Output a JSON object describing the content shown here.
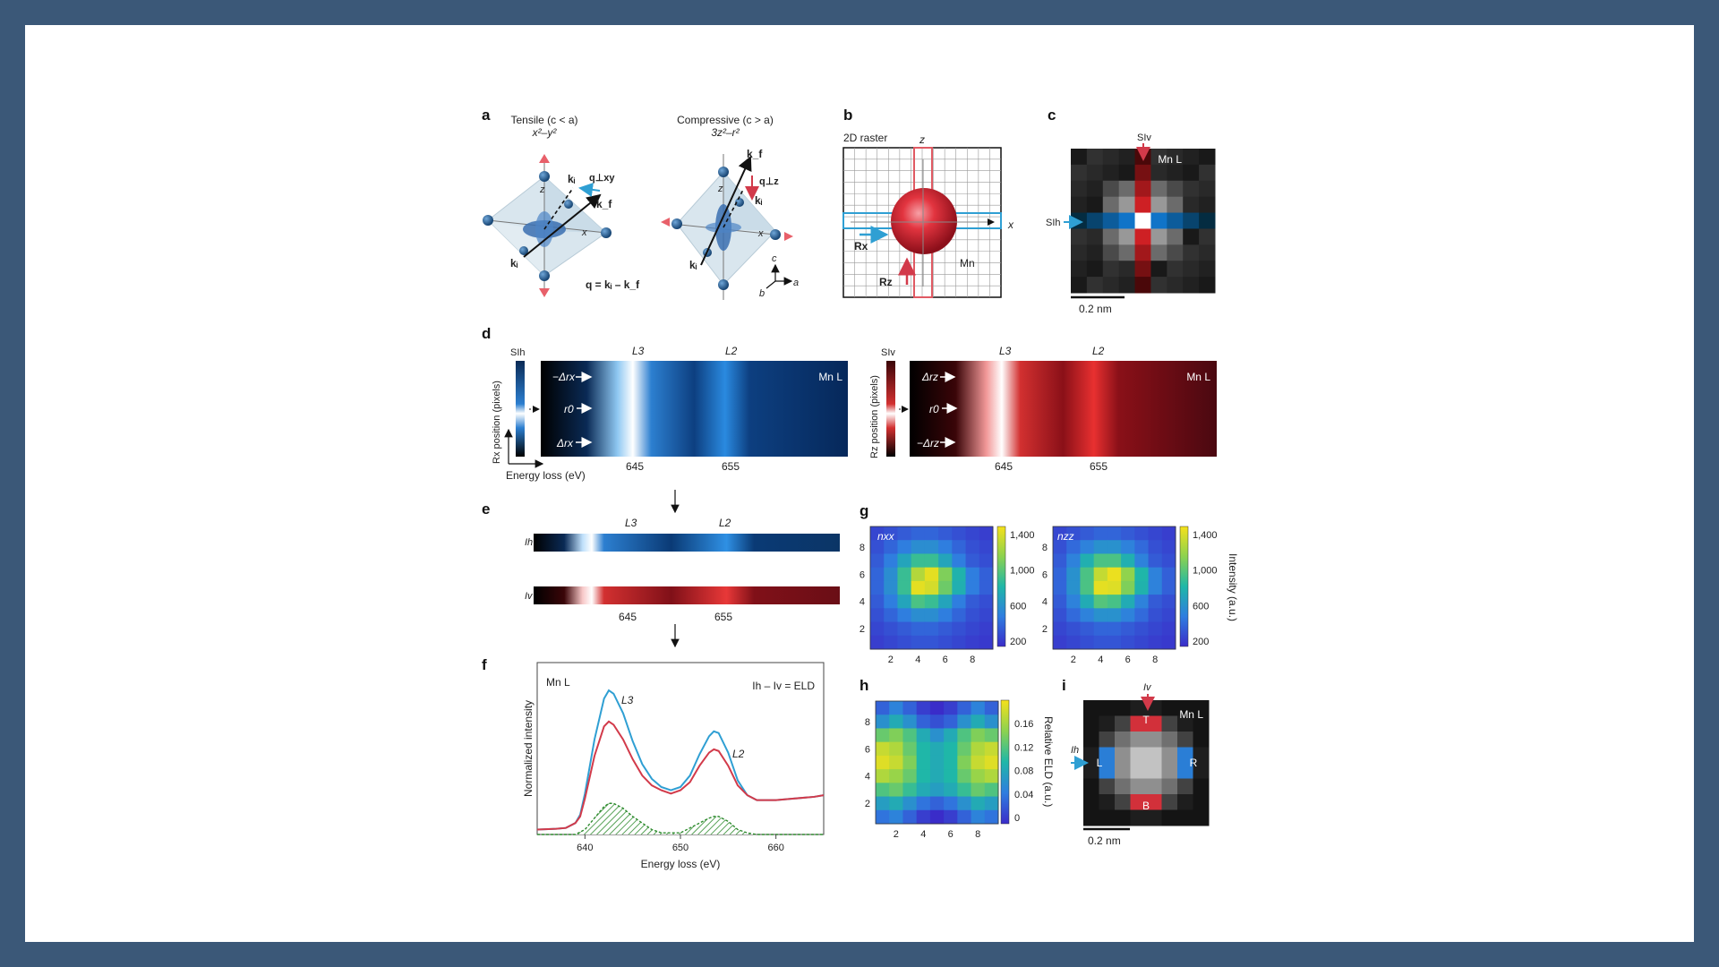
{
  "panels": {
    "a": {
      "label": "a",
      "tensile": "Tensile (c < a)",
      "tensile_orbital": "x²–y²",
      "compressive": "Compressive (c > a)",
      "compressive_orbital": "3z²–r²",
      "q_eq": "q = kᵢ – k_f",
      "q_perp_xy": "q⊥xy",
      "q_perp_z": "q⊥z",
      "k_i": "kᵢ",
      "k_f": "k_f",
      "axis_x": "x",
      "axis_z": "z",
      "axis_a": "a",
      "axis_b": "b",
      "axis_c": "c"
    },
    "b": {
      "label": "b",
      "raster": "2D  raster",
      "z": "z",
      "x": "x",
      "Rx": "Rx",
      "Rz": "Rz",
      "mn": "Mn"
    },
    "c": {
      "label": "c",
      "si_v": "SIv",
      "si_h": "SIh",
      "mn": "Mn L",
      "scale": "0.2 nm"
    },
    "d": {
      "label": "d",
      "si_h": "SIh",
      "si_v": "SIv",
      "ylabel_left": "Rx position (pixels)",
      "ylabel_right": "Rz position (pixels)",
      "xlabel": "Energy loss (eV)",
      "L3": "L3",
      "L2": "L2",
      "tick_645": "645",
      "tick_655": "655",
      "mn": "Mn L",
      "neg_dx": "−Δrx",
      "r0": "r0",
      "dx": "Δrx",
      "dz": "Δrz",
      "neg_dz": "−Δrz"
    },
    "e": {
      "label": "e",
      "ih": "Ih",
      "iv": "Iv",
      "L3": "L3",
      "L2": "L2",
      "tick_645": "645",
      "tick_655": "655"
    },
    "f": {
      "label": "f",
      "mn": "Mn L",
      "L3": "L3",
      "L2": "L2",
      "legend": "Ih – Iv = ELD",
      "ylabel": "Normalized intensity",
      "xlabel": "Energy loss (eV)",
      "ticks": [
        "640",
        "650",
        "660"
      ]
    },
    "g": {
      "label": "g",
      "nxx": "nxx",
      "nzz": "nzz",
      "ticks": [
        "2",
        "4",
        "6",
        "8"
      ],
      "cbar_ticks": [
        "1,400",
        "1,000",
        "600",
        "200"
      ],
      "cbar_label": "Intensity (a.u.)"
    },
    "h": {
      "label": "h",
      "ticks": [
        "2",
        "4",
        "6",
        "8"
      ],
      "cbar_ticks": [
        "0.16",
        "0.12",
        "0.08",
        "0.04",
        "0"
      ],
      "cbar_label": "Relative ELD (a.u.)"
    },
    "i": {
      "label": "i",
      "iv": "Iv",
      "ih": "Ih",
      "mn": "Mn L",
      "T": "T",
      "L": "L",
      "R": "R",
      "B": "B",
      "scale": "0.2 nm"
    }
  },
  "colors": {
    "blue_accent": "#2f9fd3",
    "red_accent": "#d23a4a",
    "eld_green": "#2e8b2e",
    "frame": "#3b5878"
  },
  "chart_data": [
    {
      "type": "line",
      "panel": "f",
      "xlabel": "Energy loss (eV)",
      "ylabel": "Normalized intensity",
      "xlim": [
        635,
        665
      ],
      "ylim": [
        0,
        1.05
      ],
      "series": [
        {
          "name": "Ih",
          "color": "#2f9fd3",
          "x": [
            635,
            637,
            638,
            639,
            639.5,
            640,
            641,
            642,
            642.5,
            643,
            644,
            645,
            646,
            647,
            648,
            649,
            650,
            651,
            652,
            653,
            653.5,
            654,
            655,
            656,
            657,
            658,
            660,
            662,
            664,
            665
          ],
          "y": [
            0.03,
            0.035,
            0.04,
            0.07,
            0.12,
            0.25,
            0.58,
            0.83,
            0.88,
            0.86,
            0.74,
            0.57,
            0.43,
            0.34,
            0.29,
            0.27,
            0.29,
            0.36,
            0.49,
            0.6,
            0.63,
            0.62,
            0.5,
            0.33,
            0.24,
            0.21,
            0.21,
            0.22,
            0.23,
            0.24
          ]
        },
        {
          "name": "Iv",
          "color": "#d23a4a",
          "x": [
            635,
            637,
            638,
            639,
            639.5,
            640,
            641,
            642,
            642.5,
            643,
            644,
            645,
            646,
            647,
            648,
            649,
            650,
            651,
            652,
            653,
            653.5,
            654,
            655,
            656,
            657,
            658,
            660,
            662,
            664,
            665
          ],
          "y": [
            0.03,
            0.035,
            0.04,
            0.07,
            0.11,
            0.22,
            0.48,
            0.66,
            0.69,
            0.67,
            0.58,
            0.46,
            0.36,
            0.3,
            0.27,
            0.25,
            0.27,
            0.32,
            0.42,
            0.5,
            0.52,
            0.51,
            0.42,
            0.3,
            0.24,
            0.21,
            0.21,
            0.22,
            0.23,
            0.24
          ]
        },
        {
          "name": "ELD",
          "color": "#2e8b2e",
          "hatched": true,
          "x": [
            635,
            639,
            640,
            641,
            642,
            642.5,
            643,
            644,
            645,
            646,
            647,
            648,
            650,
            651,
            652,
            653,
            653.5,
            654,
            655,
            656,
            657,
            658,
            665
          ],
          "y": [
            0,
            0,
            0.03,
            0.1,
            0.17,
            0.19,
            0.19,
            0.16,
            0.11,
            0.07,
            0.03,
            0.01,
            0.01,
            0.04,
            0.07,
            0.1,
            0.11,
            0.11,
            0.08,
            0.03,
            0.01,
            0,
            0
          ]
        }
      ]
    },
    {
      "type": "heatmap",
      "panel": "g-nxx",
      "z": [
        [
          300,
          340,
          380,
          420,
          420,
          380,
          340,
          300,
          270
        ],
        [
          340,
          420,
          520,
          600,
          600,
          520,
          420,
          340,
          300
        ],
        [
          380,
          520,
          720,
          900,
          900,
          720,
          520,
          380,
          330
        ],
        [
          420,
          600,
          900,
          1250,
          1400,
          1100,
          800,
          520,
          400
        ],
        [
          420,
          600,
          900,
          1400,
          1350,
          1050,
          780,
          520,
          400
        ],
        [
          380,
          520,
          720,
          950,
          900,
          720,
          520,
          380,
          330
        ],
        [
          340,
          420,
          520,
          600,
          600,
          520,
          420,
          340,
          300
        ],
        [
          300,
          340,
          380,
          420,
          420,
          380,
          340,
          300,
          270
        ],
        [
          270,
          300,
          330,
          360,
          360,
          330,
          300,
          270,
          250
        ]
      ],
      "zlim": [
        200,
        1450
      ]
    },
    {
      "type": "heatmap",
      "panel": "g-nzz",
      "z": [
        [
          300,
          340,
          380,
          420,
          420,
          380,
          340,
          300,
          270
        ],
        [
          340,
          440,
          540,
          620,
          620,
          540,
          440,
          340,
          300
        ],
        [
          380,
          540,
          780,
          950,
          950,
          780,
          540,
          380,
          330
        ],
        [
          420,
          620,
          950,
          1300,
          1420,
          1150,
          820,
          540,
          400
        ],
        [
          420,
          620,
          950,
          1400,
          1380,
          1100,
          800,
          540,
          400
        ],
        [
          380,
          540,
          760,
          980,
          940,
          760,
          540,
          380,
          330
        ],
        [
          340,
          440,
          540,
          620,
          620,
          540,
          440,
          340,
          300
        ],
        [
          300,
          340,
          380,
          420,
          420,
          380,
          340,
          300,
          270
        ],
        [
          270,
          300,
          330,
          360,
          360,
          330,
          300,
          270,
          250
        ]
      ],
      "zlim": [
        200,
        1450
      ]
    },
    {
      "type": "heatmap",
      "panel": "h",
      "z": [
        [
          0.03,
          0.05,
          0.03,
          0.01,
          0.0,
          0.01,
          0.03,
          0.05,
          0.03
        ],
        [
          0.06,
          0.08,
          0.06,
          0.03,
          0.02,
          0.03,
          0.06,
          0.08,
          0.06
        ],
        [
          0.12,
          0.13,
          0.11,
          0.08,
          0.06,
          0.08,
          0.11,
          0.13,
          0.12
        ],
        [
          0.16,
          0.15,
          0.12,
          0.09,
          0.08,
          0.09,
          0.12,
          0.15,
          0.16
        ],
        [
          0.17,
          0.16,
          0.13,
          0.09,
          0.08,
          0.09,
          0.13,
          0.16,
          0.17
        ],
        [
          0.15,
          0.14,
          0.12,
          0.09,
          0.08,
          0.09,
          0.12,
          0.14,
          0.15
        ],
        [
          0.11,
          0.12,
          0.1,
          0.08,
          0.07,
          0.08,
          0.1,
          0.12,
          0.11
        ],
        [
          0.07,
          0.08,
          0.06,
          0.04,
          0.03,
          0.04,
          0.06,
          0.08,
          0.07
        ],
        [
          0.04,
          0.05,
          0.03,
          0.01,
          0.0,
          0.01,
          0.03,
          0.05,
          0.04
        ]
      ],
      "zlim": [
        0,
        0.18
      ]
    }
  ]
}
